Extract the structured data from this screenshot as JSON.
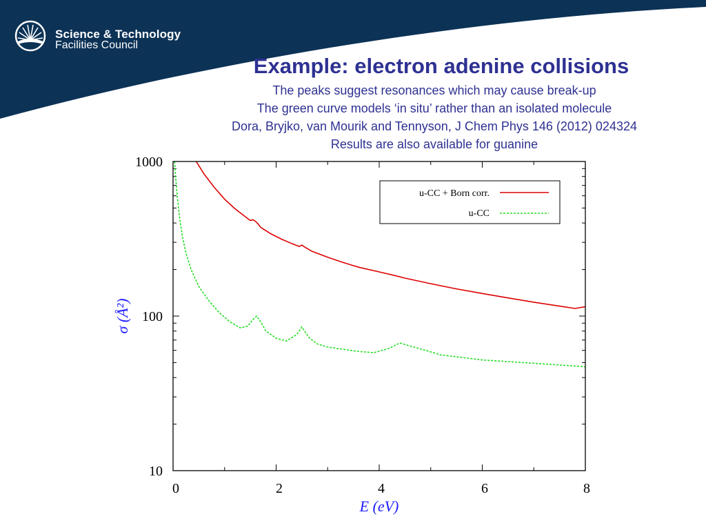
{
  "header": {
    "logo_line1": "Science & Technology",
    "logo_line2": "Facilities Council",
    "title": "Example: electron adenine collisions",
    "lines": [
      "The peaks suggest resonances which may cause break-up",
      "The green curve models ‘in situ’  rather than an isolated molecule",
      "Dora, Bryjko, van Mourik and Tennyson, J Chem Phys 146 (2012)  024324",
      "Results are also available for guanine"
    ]
  },
  "colors": {
    "banner": "#0c3256",
    "title_text": "#2e3192",
    "axis_title": "#1a1aff",
    "series_red": "#dd0000",
    "series_green": "#22dd22"
  },
  "chart_data": {
    "type": "line",
    "xlabel": "E (eV)",
    "ylabel": "σ (Å²)",
    "xlim": [
      0,
      8
    ],
    "ylim": [
      10,
      1000
    ],
    "yscale": "log",
    "x_ticks": [
      "0",
      "2",
      "4",
      "6",
      "8"
    ],
    "y_ticks": [
      "10",
      "100",
      "1000"
    ],
    "legend_position": "top-right",
    "series": [
      {
        "name": "u-CC + Born corr.",
        "style": "solid",
        "color": "#dd0000",
        "x": [
          0.45,
          0.6,
          0.8,
          1.0,
          1.2,
          1.4,
          1.5,
          1.55,
          1.6,
          1.65,
          1.7,
          1.9,
          2.1,
          2.3,
          2.45,
          2.5,
          2.55,
          2.7,
          3.0,
          3.3,
          3.6,
          4.0,
          4.3,
          4.5,
          5.0,
          5.5,
          6.0,
          6.5,
          7.0,
          7.5,
          7.8,
          8.0
        ],
        "y": [
          1000,
          830,
          680,
          570,
          495,
          440,
          415,
          420,
          410,
          395,
          375,
          340,
          315,
          295,
          282,
          288,
          280,
          262,
          240,
          222,
          207,
          193,
          183,
          176,
          162,
          150,
          140,
          131,
          123,
          116,
          112,
          115
        ]
      },
      {
        "name": "u-CC",
        "style": "dashed",
        "color": "#22dd22",
        "x": [
          0.03,
          0.05,
          0.08,
          0.12,
          0.18,
          0.25,
          0.35,
          0.5,
          0.7,
          0.9,
          1.1,
          1.3,
          1.45,
          1.55,
          1.62,
          1.7,
          1.8,
          2.0,
          2.2,
          2.4,
          2.5,
          2.55,
          2.65,
          2.8,
          3.0,
          3.3,
          3.6,
          3.9,
          4.2,
          4.4,
          4.6,
          4.9,
          5.2,
          5.6,
          6.0,
          6.4,
          6.8,
          7.2,
          7.6,
          8.0
        ],
        "y": [
          1000,
          800,
          600,
          450,
          330,
          255,
          200,
          155,
          125,
          105,
          92,
          84,
          86,
          95,
          100,
          92,
          80,
          72,
          69,
          76,
          85,
          80,
          72,
          66,
          63,
          61,
          59,
          58,
          62,
          67,
          64,
          60,
          56,
          54,
          52,
          51,
          50,
          49,
          48,
          47
        ]
      }
    ]
  }
}
